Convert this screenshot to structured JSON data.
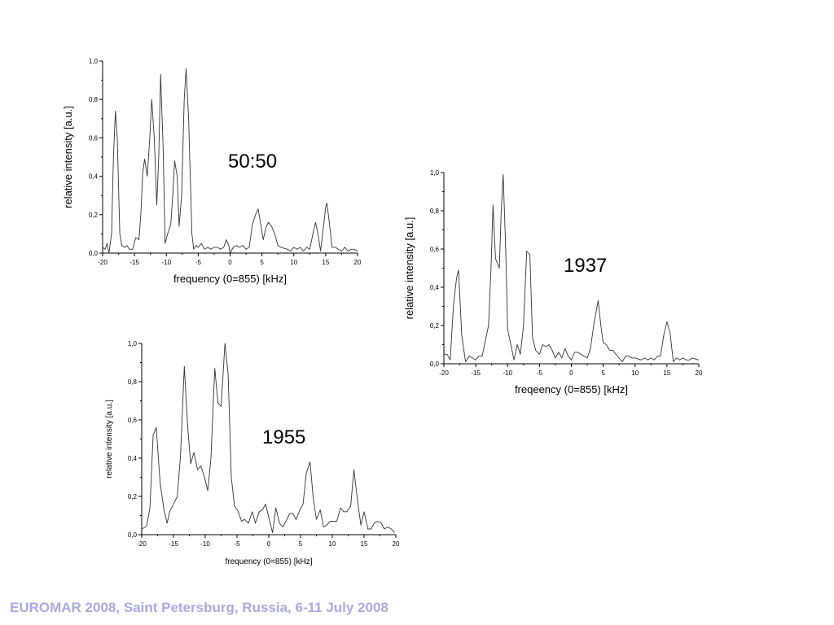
{
  "footer": "EUROMAR 2008, Saint Petersburg, Russia, 6-11 July 2008",
  "colors": {
    "line": "#333333",
    "footer": "#a9a9e3"
  },
  "chart_data": [
    {
      "type": "line",
      "annotation": "50:50",
      "xlabel": "frequency (0=855) [kHz]",
      "ylabel": "relative intensity [a.u.]",
      "xlim": [
        -20,
        20
      ],
      "ylim": [
        0,
        1
      ],
      "xticks": [
        "-20",
        "-15",
        "-10",
        "-5",
        "0",
        "5",
        "10",
        "15",
        "20"
      ],
      "yticks": [
        "0,0",
        "0,2",
        "0,4",
        "0,6",
        "0,8",
        "1,0"
      ],
      "x": [
        -20,
        -19.6,
        -19.3,
        -19,
        -18.6,
        -18.3,
        -18,
        -17.7,
        -17.3,
        -17,
        -16.5,
        -16.2,
        -15.8,
        -15.3,
        -14.8,
        -14.3,
        -14,
        -13.7,
        -13.4,
        -13,
        -12.6,
        -12.3,
        -11.9,
        -11.5,
        -11.2,
        -10.9,
        -10.5,
        -10.2,
        -9.8,
        -9.3,
        -9,
        -8.7,
        -8.3,
        -8,
        -7.6,
        -7.2,
        -6.9,
        -6.5,
        -6,
        -5.7,
        -5.3,
        -5,
        -4.5,
        -4,
        -3.5,
        -3,
        -2.5,
        -2,
        -1.5,
        -1,
        -0.6,
        -0.2,
        0,
        0.5,
        1,
        1.5,
        2,
        2.5,
        3,
        3.5,
        4,
        4.4,
        4.8,
        5.2,
        5.6,
        6,
        6.5,
        7,
        7.5,
        8,
        9,
        9.5,
        10,
        10.5,
        11,
        11.5,
        12,
        12.5,
        13,
        13.4,
        13.8,
        14.2,
        14.6,
        15,
        15.2,
        15.6,
        16,
        16.5,
        17,
        17.5,
        18,
        18.5,
        19,
        19.5,
        20
      ],
      "y": [
        0.03,
        0.02,
        0.05,
        0.0,
        0.1,
        0.5,
        0.74,
        0.6,
        0.1,
        0.04,
        0.03,
        0.04,
        0.02,
        0.02,
        0.08,
        0.07,
        0.2,
        0.42,
        0.49,
        0.4,
        0.6,
        0.8,
        0.6,
        0.25,
        0.5,
        0.93,
        0.55,
        0.05,
        0.1,
        0.15,
        0.3,
        0.48,
        0.4,
        0.14,
        0.3,
        0.8,
        0.96,
        0.7,
        0.1,
        0.02,
        0.04,
        0.03,
        0.05,
        0.02,
        0.03,
        0.02,
        0.03,
        0.03,
        0.02,
        0.03,
        0.07,
        0.04,
        0.0,
        0.03,
        0.04,
        0.03,
        0.04,
        0.02,
        0.03,
        0.15,
        0.2,
        0.23,
        0.15,
        0.07,
        0.13,
        0.16,
        0.14,
        0.1,
        0.04,
        0.03,
        0.02,
        0.01,
        0.03,
        0.02,
        0.03,
        0.01,
        0.03,
        0.02,
        0.1,
        0.16,
        0.1,
        0.01,
        0.12,
        0.24,
        0.26,
        0.15,
        0.03,
        0.03,
        0.02,
        0.01,
        0.03,
        0.01,
        0.02,
        0.02,
        0.01
      ]
    },
    {
      "type": "line",
      "annotation": "1937",
      "xlabel": "freqeency (0=855) [kHz]",
      "ylabel": "relative intensity [a.u.]",
      "xlim": [
        -20,
        20
      ],
      "ylim": [
        0,
        1
      ],
      "xticks": [
        "-20",
        "-15",
        "-10",
        "-5",
        "0",
        "5",
        "10",
        "15",
        "20"
      ],
      "yticks": [
        "0,0",
        "0,2",
        "0,4",
        "0,6",
        "0,8",
        "1,0"
      ],
      "x": [
        -20,
        -19.5,
        -19,
        -18.5,
        -18,
        -17.7,
        -17.2,
        -16.6,
        -16,
        -15,
        -14.5,
        -14,
        -13,
        -12.6,
        -12.3,
        -11.9,
        -11.3,
        -11,
        -10.7,
        -10.3,
        -10,
        -9.5,
        -9,
        -8.5,
        -8,
        -7.5,
        -7,
        -6.5,
        -6.1,
        -5.6,
        -5,
        -4.5,
        -4,
        -3.5,
        -3,
        -2.5,
        -2,
        -1.5,
        -1,
        -0.5,
        0,
        0.5,
        1,
        1.5,
        2,
        2.5,
        3,
        3.5,
        4.2,
        4.7,
        5,
        5.5,
        6,
        6.5,
        7,
        8,
        8.5,
        9,
        9.5,
        10,
        11,
        11.5,
        12,
        12.5,
        13,
        13.5,
        14,
        14.5,
        15,
        15.5,
        16,
        16.5,
        17,
        17.5,
        18,
        18.5,
        19,
        20
      ],
      "y": [
        0.05,
        0.05,
        0.02,
        0.3,
        0.45,
        0.49,
        0.15,
        0.01,
        0.04,
        0.02,
        0.04,
        0.04,
        0.2,
        0.5,
        0.83,
        0.55,
        0.5,
        0.8,
        0.99,
        0.6,
        0.18,
        0.1,
        0.02,
        0.1,
        0.05,
        0.2,
        0.59,
        0.57,
        0.14,
        0.07,
        0.05,
        0.1,
        0.09,
        0.1,
        0.07,
        0.03,
        0.06,
        0.03,
        0.08,
        0.04,
        0.02,
        0.06,
        0.06,
        0.05,
        0.04,
        0.03,
        0.08,
        0.2,
        0.33,
        0.18,
        0.11,
        0.1,
        0.07,
        0.07,
        0.05,
        0.01,
        0.04,
        0.04,
        0.03,
        0.03,
        0.02,
        0.03,
        0.02,
        0.03,
        0.02,
        0.04,
        0.04,
        0.15,
        0.22,
        0.16,
        0.01,
        0.03,
        0.02,
        0.03,
        0.02,
        0.02,
        0.03,
        0.02
      ]
    },
    {
      "type": "line",
      "annotation": "1955",
      "xlabel": "frequency (0=855) [kHz]",
      "ylabel": "relative intensity [a.u.]",
      "xlim": [
        -20,
        20
      ],
      "ylim": [
        0,
        1
      ],
      "xticks": [
        "-20",
        "-15",
        "-10",
        "-5",
        "0",
        "5",
        "10",
        "15",
        "20"
      ],
      "yticks": [
        "0,0",
        "0,2",
        "0,4",
        "0,6",
        "0,8",
        "1,0"
      ],
      "x": [
        -20,
        -19.4,
        -19.2,
        -18.7,
        -18.2,
        -17.7,
        -17.1,
        -16.5,
        -16,
        -15.6,
        -15,
        -14.4,
        -13.9,
        -13.3,
        -12.8,
        -12.3,
        -11.8,
        -11.2,
        -10.7,
        -10.1,
        -9.6,
        -9.1,
        -8.5,
        -8,
        -7.5,
        -6.9,
        -6.4,
        -5.9,
        -5.4,
        -4.8,
        -4.3,
        -3.8,
        -3.2,
        -2.6,
        -2.1,
        -1.5,
        -1,
        -0.5,
        0,
        0.6,
        1.1,
        1.7,
        2.2,
        2.7,
        3.3,
        3.8,
        4.3,
        4.9,
        5.4,
        5.9,
        6.5,
        7,
        7.5,
        8.1,
        8.6,
        9.1,
        9.7,
        10.2,
        10.7,
        11.3,
        11.8,
        12.3,
        12.9,
        13.4,
        14,
        14.5,
        15,
        15.6,
        16.1,
        16.6,
        17.1,
        17.7,
        18.2,
        18.7,
        19.3,
        19.8
      ],
      "y": [
        0.03,
        0.04,
        0.05,
        0.14,
        0.52,
        0.56,
        0.27,
        0.13,
        0.06,
        0.12,
        0.16,
        0.2,
        0.41,
        0.88,
        0.58,
        0.37,
        0.43,
        0.34,
        0.36,
        0.3,
        0.23,
        0.4,
        0.87,
        0.69,
        0.67,
        1.0,
        0.84,
        0.3,
        0.15,
        0.12,
        0.07,
        0.08,
        0.06,
        0.12,
        0.06,
        0.12,
        0.13,
        0.16,
        0.09,
        0.01,
        0.14,
        0.06,
        0.04,
        0.07,
        0.11,
        0.11,
        0.08,
        0.13,
        0.16,
        0.32,
        0.38,
        0.19,
        0.08,
        0.13,
        0.04,
        0.05,
        0.07,
        0.07,
        0.07,
        0.14,
        0.12,
        0.12,
        0.15,
        0.34,
        0.17,
        0.05,
        0.12,
        0.03,
        0.03,
        0.06,
        0.07,
        0.06,
        0.03,
        0.04,
        0.03,
        0.01
      ]
    }
  ]
}
